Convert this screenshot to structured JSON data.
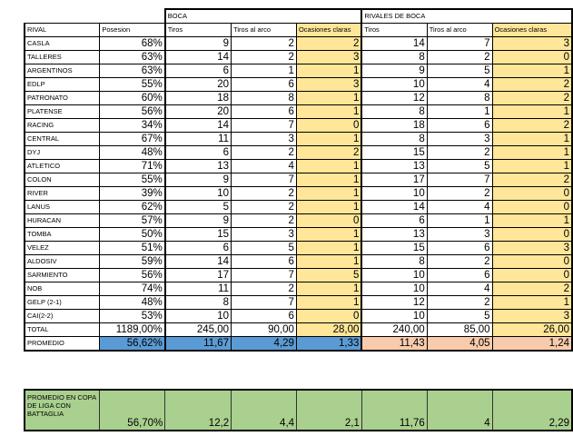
{
  "headers": {
    "boca": "BOCA",
    "rivales": "RIVALES DE BOCA",
    "rival": "RIVAL",
    "posesion": "Posesion",
    "tiros": "Tiros",
    "tiros_arco": "Tiros al arco",
    "ocasiones": "Ocasiones claras"
  },
  "rows": [
    [
      "CASLA",
      "68%",
      "9",
      "2",
      "2",
      "14",
      "7",
      "3"
    ],
    [
      "TALLERES",
      "63%",
      "14",
      "2",
      "3",
      "8",
      "2",
      "0"
    ],
    [
      "ARGENTINOS",
      "63%",
      "6",
      "1",
      "1",
      "9",
      "5",
      "1"
    ],
    [
      "EDLP",
      "55%",
      "20",
      "6",
      "3",
      "10",
      "4",
      "2"
    ],
    [
      "PATRONATO",
      "60%",
      "18",
      "8",
      "1",
      "12",
      "8",
      "2"
    ],
    [
      "PLATENSE",
      "56%",
      "20",
      "6",
      "1",
      "8",
      "1",
      "1"
    ],
    [
      "RACING",
      "34%",
      "14",
      "7",
      "0",
      "18",
      "6",
      "2"
    ],
    [
      "CENTRAL",
      "67%",
      "11",
      "3",
      "1",
      "8",
      "3",
      "1"
    ],
    [
      "DYJ",
      "48%",
      "6",
      "2",
      "2",
      "15",
      "2",
      "1"
    ],
    [
      "ATLETICO",
      "71%",
      "13",
      "4",
      "1",
      "13",
      "5",
      "1"
    ],
    [
      "COLON",
      "55%",
      "9",
      "7",
      "1",
      "17",
      "7",
      "2"
    ],
    [
      "RIVER",
      "39%",
      "10",
      "2",
      "1",
      "10",
      "2",
      "0"
    ],
    [
      "LANUS",
      "62%",
      "5",
      "2",
      "1",
      "14",
      "4",
      "0"
    ],
    [
      "HURACAN",
      "57%",
      "9",
      "2",
      "0",
      "6",
      "1",
      "1"
    ],
    [
      "TOMBA",
      "50%",
      "15",
      "3",
      "1",
      "13",
      "3",
      "0"
    ],
    [
      "VELEZ",
      "51%",
      "6",
      "5",
      "1",
      "15",
      "6",
      "3"
    ],
    [
      "ALDOSIV",
      "59%",
      "14",
      "6",
      "1",
      "8",
      "2",
      "0"
    ],
    [
      "SARMIENTO",
      "56%",
      "17",
      "7",
      "5",
      "10",
      "6",
      "0"
    ],
    [
      "NOB",
      "74%",
      "11",
      "2",
      "1",
      "10",
      "4",
      "2"
    ],
    [
      "GELP (2-1)",
      "48%",
      "8",
      "7",
      "1",
      "12",
      "2",
      "1"
    ],
    [
      "CAI(2-2)",
      "53%",
      "10",
      "6",
      "0",
      "10",
      "5",
      "3"
    ]
  ],
  "total": [
    "TOTAL",
    "1189,00%",
    "245,00",
    "90,00",
    "28,00",
    "240,00",
    "85,00",
    "26,00"
  ],
  "promedio": [
    "PROMEDIO",
    "56,62%",
    "11,67",
    "4,29",
    "1,33",
    "11,43",
    "4,05",
    "1,24"
  ],
  "battaglia": [
    "PROMEDIO EN COPA DE LIGA CON BATTAGLIA",
    "56,70%",
    "12,2",
    "4,4",
    "2,1",
    "11,76",
    "4",
    "2,29"
  ],
  "colors": {
    "yellow": "#ffe699",
    "blue": "#5b9bd5",
    "salmon": "#f8cbad",
    "green": "#a9d08e"
  }
}
